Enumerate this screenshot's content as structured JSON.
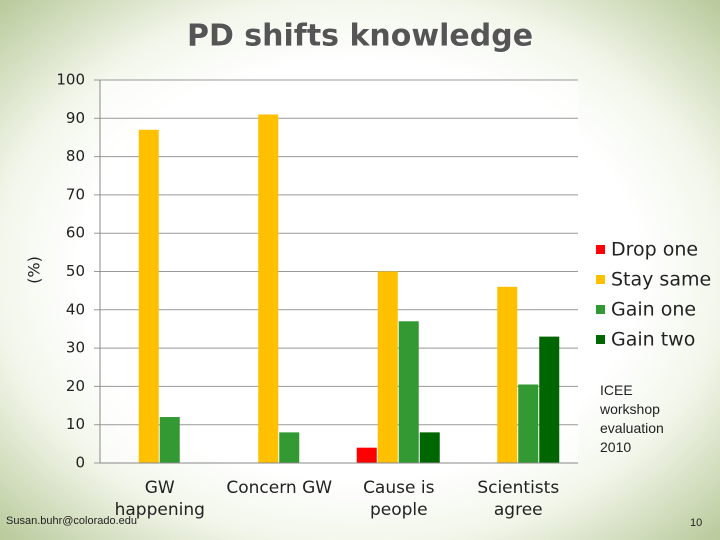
{
  "chart_data": {
    "type": "bar",
    "title": "PD shifts knowledge",
    "ylabel": "(%)",
    "categories": [
      "GW happening",
      "Concern GW",
      "Cause is people",
      "Scientists agree"
    ],
    "series": [
      {
        "name": "Drop one",
        "color": "#ff0000",
        "values": [
          null,
          null,
          4,
          null
        ]
      },
      {
        "name": "Stay same",
        "color": "#ffc000",
        "values": [
          87,
          91,
          50,
          46
        ]
      },
      {
        "name": "Gain one",
        "color": "#339933",
        "values": [
          12,
          8,
          37,
          20.5
        ]
      },
      {
        "name": "Gain two",
        "color": "#006600",
        "values": [
          null,
          null,
          8,
          33
        ]
      }
    ],
    "ylim": [
      0,
      100
    ],
    "yticks": [
      0,
      10,
      20,
      30,
      40,
      50,
      60,
      70,
      80,
      90,
      100
    ],
    "grid": true,
    "legend": "right",
    "annotation": "ICEE workshop evaluation 2010",
    "footer": "Susan.buhr@colorado.edu",
    "page_number": "10"
  }
}
